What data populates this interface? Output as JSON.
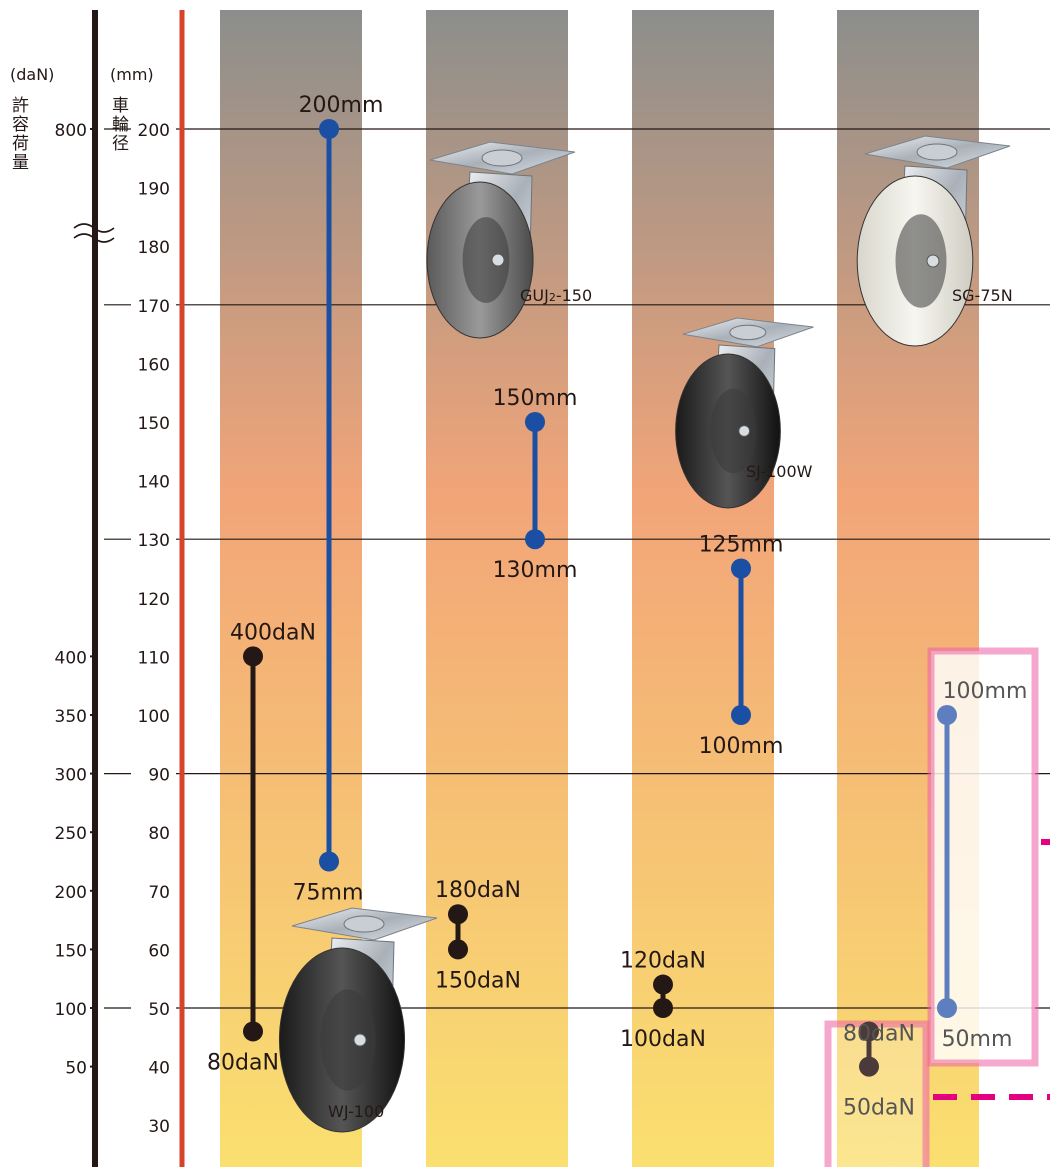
{
  "chart_data": {
    "type": "range",
    "axes": {
      "load": {
        "unit_label": "(daN)",
        "title_chars": [
          "許",
          "容",
          "荷",
          "量"
        ],
        "ticks": [
          {
            "value": 800,
            "label": "800"
          },
          {
            "value": 400,
            "label": "400"
          },
          {
            "value": 350,
            "label": "350"
          },
          {
            "value": 300,
            "label": "300"
          },
          {
            "value": 250,
            "label": "250"
          },
          {
            "value": 200,
            "label": "200"
          },
          {
            "value": 150,
            "label": "150"
          },
          {
            "value": 100,
            "label": "100"
          },
          {
            "value": 50,
            "label": "50"
          }
        ],
        "axis_break": "between 800 and 400"
      },
      "diameter": {
        "unit_label": "(mm)",
        "title_chars": [
          "車",
          "輪",
          "径"
        ],
        "ticks": [
          200,
          190,
          180,
          170,
          160,
          150,
          140,
          130,
          120,
          110,
          100,
          90,
          80,
          70,
          60,
          50,
          40,
          30
        ],
        "range": [
          25,
          210
        ]
      }
    },
    "series": [
      {
        "model": "WJ-100",
        "diameter_range": {
          "min": 75,
          "max": 200,
          "min_label": "75mm",
          "max_label": "200mm"
        },
        "load_range": {
          "min": 80,
          "max": 400,
          "min_label": "80daN",
          "max_label": "400daN"
        }
      },
      {
        "model": "GUJ2-150",
        "model_parts": [
          "GUJ",
          "2",
          "-150"
        ],
        "diameter_range": {
          "min": 130,
          "max": 150,
          "min_label": "130mm",
          "max_label": "150mm"
        },
        "load_range": {
          "min": 150,
          "max": 180,
          "min_label": "150daN",
          "max_label": "180daN"
        }
      },
      {
        "model": "SJ-100W",
        "diameter_range": {
          "min": 100,
          "max": 125,
          "min_label": "100mm",
          "max_label": "125mm"
        },
        "load_range": {
          "min": 100,
          "max": 120,
          "min_label": "100daN",
          "max_label": "120daN"
        }
      },
      {
        "model": "SG-75N",
        "diameter_range": {
          "min": 50,
          "max": 100,
          "min_label": "50mm",
          "max_label": "100mm"
        },
        "load_range": {
          "min": 50,
          "max": 80,
          "min_label": "50daN",
          "max_label": "80daN"
        }
      }
    ],
    "gridlines_at_diameter": [
      200,
      170,
      130,
      90,
      50
    ],
    "colors": {
      "diameter_marker": "#1a4fa3",
      "load_marker": "#231816",
      "axis_line": "#231816",
      "diameter_axis_line": "#d6432a",
      "band_top": "#8c8e8c",
      "band_mid": "#f2a578",
      "band_bottom": "#fae070",
      "highlight_pink": "#ed5fa5",
      "dash_magenta": "#e4007f"
    }
  }
}
